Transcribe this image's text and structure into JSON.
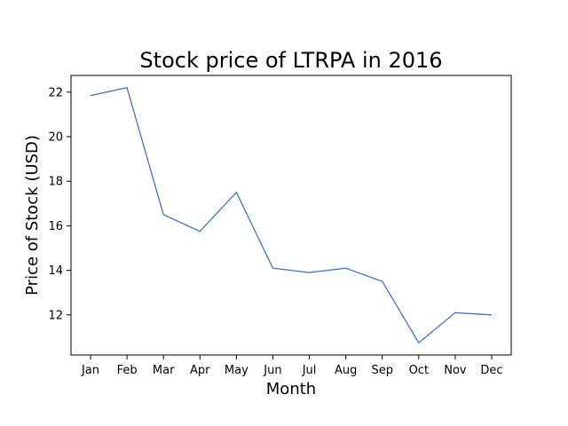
{
  "chart_data": {
    "type": "line",
    "title": "Stock price of LTRPA in 2016",
    "xlabel": "Month",
    "ylabel": "Price of Stock (USD)",
    "categories": [
      "Jan",
      "Feb",
      "Mar",
      "Apr",
      "May",
      "Jun",
      "Jul",
      "Aug",
      "Sep",
      "Oct",
      "Nov",
      "Dec"
    ],
    "series": [
      {
        "values": [
          21.85,
          22.2,
          16.5,
          15.75,
          17.5,
          14.1,
          13.9,
          14.1,
          13.5,
          10.75,
          12.1,
          12.0
        ],
        "color": "#4472c4"
      }
    ],
    "ylim": [
      10.2,
      22.75
    ],
    "yticks": [
      12,
      14,
      16,
      18,
      20,
      22
    ],
    "grid": false,
    "legend": "none"
  }
}
